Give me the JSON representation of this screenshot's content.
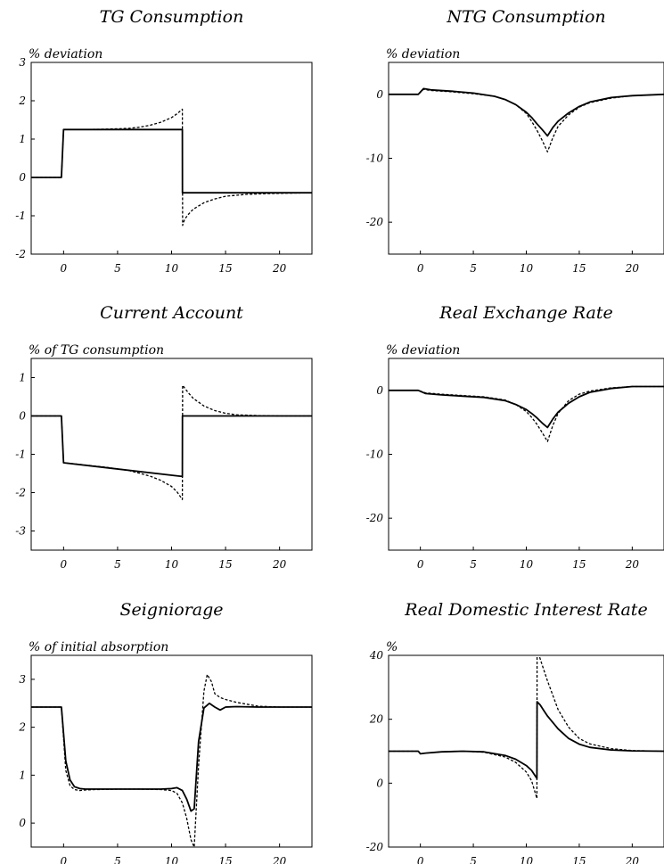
{
  "figure": {
    "title": "",
    "style": {
      "actual_color": "#000000",
      "anticipated_color": "#000000",
      "background": "#ffffff"
    }
  },
  "chart_data": [
    {
      "type": "line",
      "title": "TG Consumption",
      "ylabel": "% deviation",
      "xlim": [
        -3,
        23
      ],
      "ylim": [
        -2,
        3
      ],
      "xticks": [
        0,
        5,
        10,
        15,
        20
      ],
      "yticks": [
        3,
        2,
        1,
        0,
        -1,
        -2
      ],
      "series": [
        {
          "style": "solid",
          "x": [
            -3,
            -0.2,
            0,
            11,
            11.01,
            23
          ],
          "y": [
            0,
            0,
            1.25,
            1.25,
            -0.4,
            -0.4
          ]
        },
        {
          "style": "dashed",
          "x": [
            -3,
            -0.2,
            0,
            2,
            4,
            6,
            7,
            8,
            9,
            10,
            10.5,
            11,
            11.02,
            11.2,
            11.5,
            12,
            13,
            14,
            15,
            17,
            19,
            21,
            23
          ],
          "y": [
            0,
            0,
            1.25,
            1.25,
            1.26,
            1.28,
            1.31,
            1.36,
            1.44,
            1.56,
            1.66,
            1.78,
            -1.25,
            -1.1,
            -0.98,
            -0.83,
            -0.66,
            -0.56,
            -0.49,
            -0.44,
            -0.42,
            -0.41,
            -0.4
          ]
        }
      ]
    },
    {
      "type": "line",
      "title": "NTG Consumption",
      "ylabel": "% deviation",
      "xlim": [
        -3,
        23
      ],
      "ylim": [
        -25,
        5
      ],
      "xticks": [
        0,
        5,
        10,
        15,
        20
      ],
      "yticks": [
        0,
        -10,
        -20
      ],
      "series": [
        {
          "style": "solid",
          "x": [
            -3,
            -0.2,
            0.3,
            1,
            3,
            5,
            7,
            8,
            9,
            10,
            10.5,
            11,
            11.5,
            12,
            12.5,
            13,
            14,
            15,
            16,
            18,
            20,
            23
          ],
          "y": [
            0,
            0,
            0.9,
            0.7,
            0.5,
            0.2,
            -0.3,
            -0.8,
            -1.6,
            -2.8,
            -3.6,
            -4.6,
            -5.5,
            -6.5,
            -5.2,
            -4.2,
            -2.9,
            -1.9,
            -1.2,
            -0.5,
            -0.2,
            0
          ]
        },
        {
          "style": "dashed",
          "x": [
            -3,
            -0.2,
            0.3,
            1,
            3,
            5,
            7,
            8,
            9,
            10,
            10.5,
            11,
            11.5,
            12,
            12.5,
            13,
            14,
            15,
            16,
            18,
            20,
            23
          ],
          "y": [
            0,
            0,
            0.8,
            0.6,
            0.4,
            0.1,
            -0.3,
            -0.8,
            -1.6,
            -3.0,
            -4.2,
            -5.6,
            -7.2,
            -9.0,
            -6.8,
            -5.0,
            -3.2,
            -2.0,
            -1.3,
            -0.6,
            -0.2,
            0
          ]
        }
      ]
    },
    {
      "type": "line",
      "title": "Current Account",
      "ylabel": "% of TG consumption",
      "xlim": [
        -3,
        23
      ],
      "ylim": [
        -3.5,
        1.5
      ],
      "xticks": [
        0,
        5,
        10,
        15,
        20
      ],
      "yticks": [
        1,
        0,
        -1,
        -2,
        -3
      ],
      "series": [
        {
          "style": "solid",
          "x": [
            -3,
            -0.2,
            0,
            11,
            11.01,
            23
          ],
          "y": [
            0,
            0,
            -1.22,
            -1.58,
            0,
            0
          ]
        },
        {
          "style": "dashed",
          "x": [
            -3,
            -0.2,
            0,
            2,
            4,
            6,
            7,
            8,
            9,
            10,
            10.5,
            11,
            11.02,
            11.5,
            12,
            13,
            14,
            15,
            16,
            18,
            20,
            23
          ],
          "y": [
            0,
            0,
            -1.22,
            -1.28,
            -1.34,
            -1.42,
            -1.49,
            -1.57,
            -1.68,
            -1.84,
            -1.98,
            -2.18,
            0.8,
            0.62,
            0.46,
            0.26,
            0.14,
            0.07,
            0.03,
            0.01,
            0,
            0
          ]
        }
      ]
    },
    {
      "type": "line",
      "title": "Real Exchange Rate",
      "ylabel": "% deviation",
      "xlim": [
        -3,
        23
      ],
      "ylim": [
        -25,
        5
      ],
      "xticks": [
        0,
        5,
        10,
        15,
        20
      ],
      "yticks": [
        0,
        -10,
        -20
      ],
      "series": [
        {
          "style": "solid",
          "x": [
            -3,
            -0.2,
            0.5,
            2,
            4,
            6,
            8,
            9,
            10,
            10.5,
            11,
            11.5,
            12,
            12.5,
            13,
            14,
            15,
            16,
            18,
            20,
            23
          ],
          "y": [
            0,
            0,
            -0.5,
            -0.7,
            -0.9,
            -1.1,
            -1.6,
            -2.2,
            -3.0,
            -3.6,
            -4.3,
            -5.1,
            -5.8,
            -4.5,
            -3.4,
            -2.0,
            -1.0,
            -0.3,
            0.3,
            0.6,
            0.6
          ]
        },
        {
          "style": "dashed",
          "x": [
            -3,
            -0.2,
            0.5,
            2,
            4,
            6,
            8,
            9,
            10,
            10.5,
            11,
            11.5,
            12,
            12.5,
            13,
            14,
            15,
            16,
            18,
            20,
            23
          ],
          "y": [
            0,
            0,
            -0.4,
            -0.6,
            -0.8,
            -1.0,
            -1.5,
            -2.2,
            -3.3,
            -4.2,
            -5.3,
            -6.6,
            -8.0,
            -5.5,
            -3.6,
            -1.6,
            -0.6,
            -0.1,
            0.4,
            0.6,
            0.6
          ]
        }
      ]
    },
    {
      "type": "line",
      "title": "Seigniorage",
      "ylabel": "% of initial absorption",
      "xlim": [
        -3,
        23
      ],
      "ylim": [
        -0.5,
        3.5
      ],
      "xticks": [
        0,
        5,
        10,
        15,
        20
      ],
      "yticks": [
        3,
        2,
        1,
        0
      ],
      "series": [
        {
          "style": "solid",
          "x": [
            -3,
            -0.2,
            0.2,
            0.6,
            1,
            1.5,
            2,
            3,
            5,
            7,
            9,
            10,
            10.5,
            11,
            11.4,
            11.8,
            12.1,
            12.5,
            13,
            13.5,
            14,
            14.5,
            15,
            16,
            18,
            20,
            23
          ],
          "y": [
            2.42,
            2.42,
            1.3,
            0.9,
            0.76,
            0.72,
            0.71,
            0.71,
            0.71,
            0.71,
            0.71,
            0.72,
            0.74,
            0.68,
            0.5,
            0.25,
            0.3,
            1.7,
            2.4,
            2.5,
            2.42,
            2.36,
            2.42,
            2.43,
            2.42,
            2.42,
            2.42
          ]
        },
        {
          "style": "dashed",
          "x": [
            -3,
            -0.2,
            0.2,
            0.6,
            1,
            1.5,
            2,
            3,
            5,
            7,
            9,
            10,
            10.5,
            11,
            11.4,
            11.8,
            12.1,
            12.5,
            13,
            13.3,
            13.7,
            14,
            14.5,
            15,
            16,
            18,
            20,
            23
          ],
          "y": [
            2.42,
            2.42,
            1.1,
            0.78,
            0.7,
            0.68,
            0.69,
            0.7,
            0.71,
            0.71,
            0.7,
            0.68,
            0.62,
            0.42,
            0.1,
            -0.35,
            -0.5,
            1.2,
            2.75,
            3.1,
            2.95,
            2.7,
            2.62,
            2.58,
            2.52,
            2.44,
            2.42,
            2.42
          ]
        }
      ]
    },
    {
      "type": "line",
      "title": "Real Domestic Interest Rate",
      "ylabel": "%",
      "xlim": [
        -3,
        23
      ],
      "ylim": [
        -20,
        40
      ],
      "xticks": [
        0,
        5,
        10,
        15,
        20
      ],
      "yticks": [
        40,
        20,
        0,
        -20
      ],
      "series": [
        {
          "style": "solid",
          "x": [
            -3,
            -0.2,
            0,
            0.5,
            2,
            4,
            6,
            8,
            9,
            10,
            10.5,
            11,
            11.02,
            11.3,
            11.7,
            12,
            13,
            14,
            15,
            16,
            18,
            20,
            23
          ],
          "y": [
            10,
            10,
            9.2,
            9.4,
            9.8,
            10,
            9.8,
            8.7,
            7.5,
            5.5,
            4,
            1.5,
            25.5,
            24.5,
            22.5,
            21,
            17,
            14,
            12.2,
            11.2,
            10.4,
            10.1,
            10
          ]
        },
        {
          "style": "dashed",
          "x": [
            -3,
            -0.2,
            0,
            0.5,
            2,
            4,
            6,
            8,
            9,
            10,
            10.5,
            11,
            11.02,
            11.2,
            11.5,
            12,
            13,
            14,
            15,
            16,
            18,
            20,
            23
          ],
          "y": [
            10,
            10,
            9.2,
            9.4,
            9.8,
            10,
            9.7,
            8.2,
            6.5,
            3.5,
            0.8,
            -4.8,
            41,
            40,
            37,
            32,
            23,
            17.5,
            14,
            12.3,
            10.8,
            10.2,
            10
          ]
        }
      ]
    }
  ]
}
